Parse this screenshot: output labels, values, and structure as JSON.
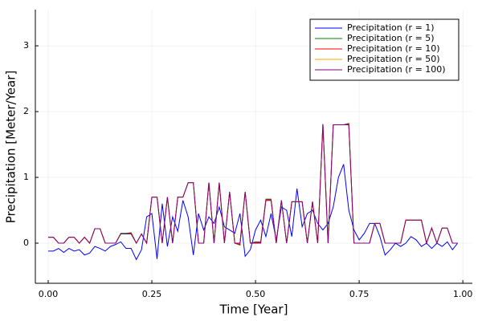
{
  "chart_data": {
    "type": "line",
    "xlabel": "Time [Year]",
    "ylabel": "Precipitation [Meter/Year]",
    "xlim": [
      -0.031,
      1.023
    ],
    "ylim": [
      -0.61,
      3.55
    ],
    "xticks": [
      {
        "value": 0,
        "label": "0.00"
      },
      {
        "value": 0.25,
        "label": "0.25"
      },
      {
        "value": 0.5,
        "label": "0.50"
      },
      {
        "value": 0.75,
        "label": "0.75"
      },
      {
        "value": 1,
        "label": "1.00"
      }
    ],
    "yticks": [
      0,
      1,
      2,
      3
    ],
    "grid": true,
    "legend": "top-right",
    "x": [
      0,
      0.0125,
      0.025,
      0.0375,
      0.05,
      0.0625,
      0.075,
      0.0875,
      0.1,
      0.1125,
      0.125,
      0.1375,
      0.15,
      0.1625,
      0.175,
      0.1875,
      0.2,
      0.2125,
      0.225,
      0.2375,
      0.25,
      0.2625,
      0.275,
      0.2875,
      0.3,
      0.3125,
      0.325,
      0.3375,
      0.35,
      0.3625,
      0.375,
      0.3875,
      0.4,
      0.4125,
      0.425,
      0.4375,
      0.45,
      0.4625,
      0.475,
      0.4875,
      0.5,
      0.5125,
      0.525,
      0.5375,
      0.55,
      0.5625,
      0.575,
      0.5875,
      0.6,
      0.6125,
      0.625,
      0.6375,
      0.65,
      0.6625,
      0.675,
      0.6875,
      0.7,
      0.7125,
      0.725,
      0.7375,
      0.75,
      0.7625,
      0.775,
      0.7875,
      0.8,
      0.8125,
      0.825,
      0.8375,
      0.85,
      0.8625,
      0.875,
      0.8875,
      0.9,
      0.9125,
      0.925,
      0.9375,
      0.95,
      0.9625,
      0.975,
      0.9875
    ],
    "series": [
      {
        "name": "Precipitation (r = 1)",
        "color": "#0000ff",
        "values": [
          -0.12,
          -0.12,
          -0.08,
          -0.14,
          -0.08,
          -0.12,
          -0.1,
          -0.18,
          -0.15,
          -0.05,
          -0.08,
          -0.12,
          -0.05,
          -0.02,
          0.02,
          -0.08,
          -0.08,
          -0.25,
          -0.1,
          0.4,
          0.45,
          -0.24,
          0.6,
          -0.05,
          0.4,
          0.18,
          0.65,
          0.4,
          -0.18,
          0.45,
          0.2,
          0.4,
          0.3,
          0.55,
          0.25,
          0.2,
          0.15,
          0.45,
          -0.2,
          -0.1,
          0.2,
          0.35,
          0.1,
          0.45,
          0.05,
          0.55,
          0.5,
          0.1,
          0.83,
          0.25,
          0.45,
          0.5,
          0.3,
          0.2,
          0.3,
          0.55,
          1.0,
          1.2,
          0.5,
          0.2,
          0.05,
          0.15,
          0.3,
          0.3,
          0.1,
          -0.18,
          -0.1,
          0.0,
          -0.05,
          0.0,
          0.1,
          0.05,
          -0.05,
          0.0,
          -0.08,
          0.0,
          -0.05,
          0.02,
          -0.1,
          0.0
        ]
      },
      {
        "name": "Precipitation (r = 5)",
        "color": "#008000",
        "values": [
          0.09,
          0.09,
          0,
          0,
          0.09,
          0.09,
          0,
          0.09,
          0,
          0.22,
          0.22,
          0,
          0,
          0,
          0.15,
          0.15,
          0.16,
          0,
          0.14,
          0,
          0.7,
          0.7,
          0,
          0.7,
          0,
          0.7,
          0.7,
          0.92,
          0.92,
          0,
          0,
          0.92,
          0,
          0.92,
          0,
          0.78,
          0,
          -0.03,
          0.78,
          0,
          0.02,
          0.02,
          0.67,
          0.67,
          0,
          0.65,
          0,
          0.63,
          0.63,
          0.63,
          0,
          0.63,
          0,
          1.81,
          0,
          1.8,
          1.8,
          1.8,
          1.82,
          0,
          0,
          0,
          0,
          0.3,
          0.3,
          0,
          0,
          0,
          0,
          0.35,
          0.35,
          0.35,
          0.35,
          0,
          0.23,
          0,
          0.23,
          0.23,
          0,
          0
        ]
      },
      {
        "name": "Precipitation (r = 10)",
        "color": "#ff0000",
        "values": [
          0.09,
          0.09,
          0,
          0,
          0.09,
          0.09,
          0,
          0.09,
          0,
          0.22,
          0.22,
          0,
          0,
          0,
          0.14,
          0.14,
          0.15,
          0,
          0.14,
          0,
          0.7,
          0.7,
          0,
          0.7,
          0,
          0.7,
          0.7,
          0.92,
          0.92,
          0,
          0,
          0.92,
          0,
          0.92,
          0,
          0.78,
          0,
          -0.02,
          0.78,
          0,
          0.01,
          0.01,
          0.66,
          0.66,
          0,
          0.65,
          0,
          0.63,
          0.63,
          0.63,
          0,
          0.63,
          0,
          1.81,
          0,
          1.8,
          1.8,
          1.8,
          1.81,
          0,
          0,
          0,
          0,
          0.3,
          0.3,
          0,
          0,
          0,
          0,
          0.35,
          0.35,
          0.35,
          0.35,
          0,
          0.23,
          0,
          0.23,
          0.23,
          0,
          0
        ]
      },
      {
        "name": "Precipitation (r = 50)",
        "color": "#ffa500",
        "values": [
          0.09,
          0.09,
          0,
          0,
          0.09,
          0.09,
          0,
          0.09,
          0,
          0.22,
          0.22,
          0,
          0,
          0,
          0.14,
          0.14,
          0.14,
          0,
          0.14,
          0,
          0.7,
          0.7,
          0,
          0.7,
          0,
          0.7,
          0.7,
          0.92,
          0.92,
          0,
          0,
          0.92,
          0,
          0.92,
          0,
          0.78,
          0,
          0,
          0.78,
          0,
          0,
          0,
          0.65,
          0.65,
          0,
          0.65,
          0,
          0.63,
          0.63,
          0.63,
          0,
          0.63,
          0,
          1.81,
          0,
          1.8,
          1.8,
          1.8,
          1.8,
          0,
          0,
          0,
          0,
          0.3,
          0.3,
          0,
          0,
          0,
          0,
          0.35,
          0.35,
          0.35,
          0.35,
          0,
          0.23,
          0,
          0.23,
          0.23,
          0,
          0
        ]
      },
      {
        "name": "Precipitation (r = 100)",
        "color": "#800080",
        "values": [
          0.09,
          0.09,
          0,
          0,
          0.09,
          0.09,
          0,
          0.09,
          0,
          0.22,
          0.22,
          0,
          0,
          0,
          0.14,
          0.14,
          0.14,
          0,
          0.14,
          0,
          0.7,
          0.7,
          0,
          0.7,
          0,
          0.7,
          0.7,
          0.92,
          0.92,
          0,
          0,
          0.92,
          0,
          0.92,
          0,
          0.78,
          0,
          0,
          0.78,
          0,
          0,
          0,
          0.65,
          0.65,
          0,
          0.65,
          0,
          0.63,
          0.63,
          0.63,
          0,
          0.63,
          0,
          1.81,
          0,
          1.8,
          1.8,
          1.8,
          1.8,
          0,
          0,
          0,
          0,
          0.3,
          0.3,
          0,
          0,
          0,
          0,
          0.35,
          0.35,
          0.35,
          0.35,
          0,
          0.23,
          0,
          0.23,
          0.23,
          0,
          0
        ]
      }
    ]
  }
}
